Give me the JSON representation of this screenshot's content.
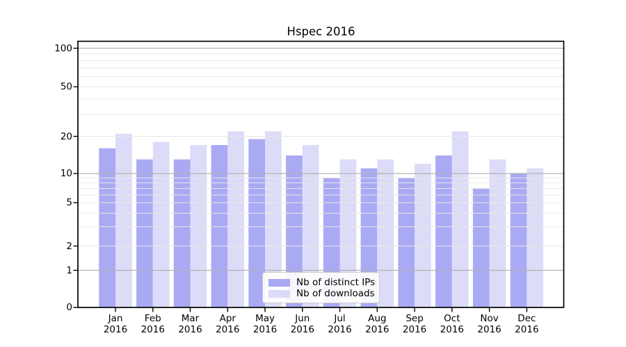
{
  "chart_data": {
    "type": "bar",
    "title": "Hspec 2016",
    "categories": [
      "Jan",
      "Feb",
      "Mar",
      "Apr",
      "May",
      "Jun",
      "Jul",
      "Aug",
      "Sep",
      "Oct",
      "Nov",
      "Dec"
    ],
    "category_year": "2016",
    "series": [
      {
        "name": "Nb of distinct IPs",
        "color": "#a9a9f4",
        "values": [
          16,
          13,
          13,
          17,
          19,
          14,
          9,
          11,
          9,
          14,
          7,
          10
        ]
      },
      {
        "name": "Nb of downloads",
        "color": "#dcdcf8",
        "values": [
          21,
          18,
          17,
          22,
          22,
          17,
          13,
          13,
          12,
          22,
          13,
          11
        ]
      }
    ],
    "y_axis": {
      "scale": "log-like with zero baseline",
      "tick_labels": [
        "0",
        "1",
        "2",
        "5",
        "10",
        "20",
        "50",
        "100"
      ],
      "tick_values": [
        0,
        1,
        2,
        5,
        10,
        20,
        50,
        100
      ],
      "major_gridlines": [
        1,
        10,
        100
      ],
      "minor_gridlines": [
        2,
        3,
        4,
        5,
        6,
        7,
        8,
        9,
        20,
        30,
        40,
        50,
        60,
        70,
        80,
        90
      ],
      "range": [
        0,
        115
      ]
    },
    "legend_position": "lower center",
    "grid": true,
    "colors": {
      "bar_distinct_ips": "#a9a9f4",
      "bar_downloads": "#dcdcf8",
      "major_grid": "#b2b2b2",
      "minor_grid": "#e7e7e7",
      "spine": "#000000",
      "text": "#000000"
    }
  }
}
